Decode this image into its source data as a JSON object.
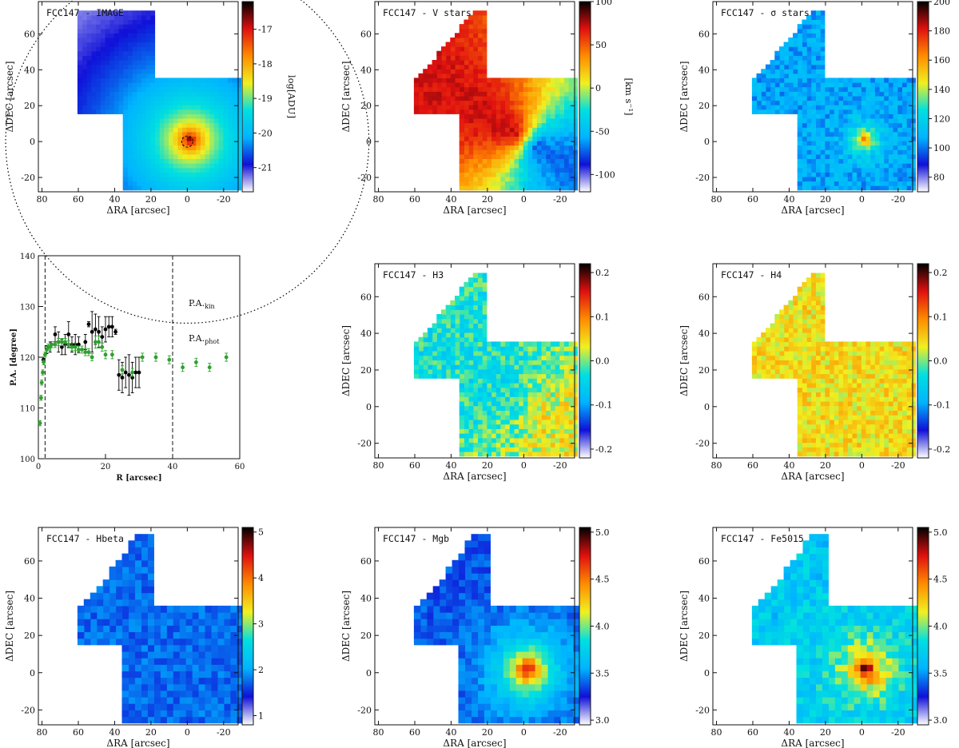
{
  "colors": {
    "axis": "#111111",
    "kin_series": "#000000",
    "phot_series": "#2ea02e",
    "colormap": [
      "#ffffff",
      "#1010d8",
      "#00b4ff",
      "#00e0e0",
      "#f0f020",
      "#ff8c00",
      "#e01010",
      "#000000"
    ]
  },
  "chart_data": [
    {
      "type": "heatmap",
      "title": "FCC147 - IMAGE",
      "xlabel": "ΔRA [arcsec]",
      "ylabel": "ΔDEC [arcsec]",
      "xlim": [
        82,
        -28
      ],
      "ylim": [
        -28,
        78
      ],
      "xticks": [
        "80",
        "60",
        "40",
        "20",
        "0",
        "-20"
      ],
      "yticks": [
        "-20",
        "0",
        "20",
        "40",
        "60"
      ],
      "colorbar": {
        "label": "log[ADU]",
        "range": [
          -21.7,
          -16.2
        ],
        "ticks": [
          "-17",
          "-18",
          "-19",
          "-20",
          "-21"
        ]
      },
      "annotations": [
        "dotted circle",
        "dashed central circle"
      ]
    },
    {
      "type": "heatmap",
      "title": "FCC147 - V stars",
      "xlabel": "ΔRA [arcsec]",
      "ylabel": "ΔDEC [arcsec]",
      "xlim": [
        82,
        -28
      ],
      "ylim": [
        -28,
        78
      ],
      "xticks": [
        "80",
        "60",
        "40",
        "20",
        "0",
        "-20"
      ],
      "yticks": [
        "-20",
        "0",
        "20",
        "40",
        "60"
      ],
      "colorbar": {
        "label": "[km s⁻¹]",
        "range": [
          -120,
          100
        ],
        "ticks": [
          "100",
          "50",
          "0",
          "-50",
          "-100"
        ]
      }
    },
    {
      "type": "heatmap",
      "title": "FCC147 - σ stars",
      "xlabel": "ΔRA [arcsec]",
      "ylabel": "ΔDEC [arcsec]",
      "xlim": [
        82,
        -28
      ],
      "ylim": [
        -28,
        78
      ],
      "xticks": [
        "80",
        "60",
        "40",
        "20",
        "0",
        "-20"
      ],
      "yticks": [
        "-20",
        "0",
        "20",
        "40",
        "60"
      ],
      "colorbar": {
        "label": "[km s⁻¹]",
        "range": [
          70,
          200
        ],
        "ticks": [
          "200",
          "180",
          "160",
          "140",
          "120",
          "100",
          "80"
        ]
      }
    },
    {
      "type": "scatter",
      "title": "",
      "xlabel": "R [arcsec]",
      "ylabel": "P.A. [degree]",
      "xlim": [
        0,
        60
      ],
      "ylim": [
        100,
        140
      ],
      "xticks": [
        "0",
        "20",
        "40",
        "60"
      ],
      "yticks": [
        "100",
        "110",
        "120",
        "130",
        "140"
      ],
      "vlines": [
        2,
        40
      ],
      "legend": [
        "P.A._kin",
        "P.A._phot"
      ],
      "legend_position": "top-right",
      "series": [
        {
          "name": "P.A._kin",
          "x": [
            1.5,
            2.5,
            3.5,
            5,
            6,
            7,
            8,
            9,
            10,
            11,
            12,
            14,
            15,
            16,
            17,
            18,
            19,
            20,
            21,
            22,
            23,
            24,
            25,
            26,
            27,
            28,
            29,
            30
          ],
          "y": [
            119.5,
            121.5,
            122,
            124.5,
            123,
            122,
            122.5,
            124.5,
            122.5,
            122.5,
            122.5,
            123,
            126.5,
            125,
            125.5,
            125,
            124,
            125.5,
            126,
            126,
            125,
            116.5,
            116,
            117,
            116.5,
            116,
            117,
            117
          ],
          "err": [
            0.5,
            0.8,
            1,
            1.5,
            2,
            1.5,
            2,
            2.5,
            1.5,
            2,
            1.5,
            1.5,
            0.5,
            4,
            3,
            3,
            2,
            2.5,
            2,
            2,
            0.5,
            3,
            3,
            3,
            4,
            3,
            3,
            3
          ]
        },
        {
          "name": "P.A._phot",
          "x": [
            0.5,
            0.8,
            1,
            1.3,
            1.6,
            2,
            2.5,
            3,
            3.5,
            4,
            5,
            6,
            7,
            8,
            9,
            10,
            11,
            12,
            13,
            14,
            15,
            16,
            17,
            18,
            19,
            20,
            22,
            25,
            28,
            31,
            35,
            39,
            43,
            47,
            51,
            56
          ],
          "y": [
            107,
            112,
            115,
            117,
            119,
            120.5,
            121.5,
            122,
            122,
            122.5,
            122.5,
            123,
            123,
            123,
            122.5,
            122,
            122,
            121.5,
            121.5,
            121,
            121,
            120,
            123,
            123,
            122,
            120.5,
            120.5,
            117.5,
            117,
            120,
            120,
            119.5,
            118,
            119,
            118,
            120
          ],
          "err": [
            0.5,
            0.5,
            0.5,
            0.5,
            0.5,
            0.5,
            0.6,
            0.6,
            0.6,
            0.6,
            0.6,
            0.7,
            0.7,
            0.7,
            0.7,
            0.7,
            0.7,
            0.7,
            0.7,
            0.7,
            0.7,
            0.7,
            1.2,
            1.2,
            0.8,
            0.8,
            0.8,
            0.8,
            0.8,
            0.8,
            0.8,
            0.8,
            0.8,
            0.8,
            0.8,
            0.8
          ]
        }
      ]
    },
    {
      "type": "heatmap",
      "title": "FCC147 - H3",
      "xlabel": "ΔRA [arcsec]",
      "ylabel": "ΔDEC [arcsec]",
      "xlim": [
        82,
        -28
      ],
      "ylim": [
        -28,
        78
      ],
      "xticks": [
        "80",
        "60",
        "40",
        "20",
        "0",
        "-20"
      ],
      "yticks": [
        "-20",
        "0",
        "20",
        "40",
        "60"
      ],
      "colorbar": {
        "label": "",
        "range": [
          -0.22,
          0.22
        ],
        "ticks": [
          "0.2",
          "0.1",
          "0.0",
          "-0.1",
          "-0.2"
        ]
      }
    },
    {
      "type": "heatmap",
      "title": "FCC147 - H4",
      "xlabel": "ΔRA [arcsec]",
      "ylabel": "ΔDEC [arcsec]",
      "xlim": [
        82,
        -28
      ],
      "ylim": [
        -28,
        78
      ],
      "xticks": [
        "80",
        "60",
        "40",
        "20",
        "0",
        "-20"
      ],
      "yticks": [
        "-20",
        "0",
        "20",
        "40",
        "60"
      ],
      "colorbar": {
        "label": "",
        "range": [
          -0.22,
          0.22
        ],
        "ticks": [
          "0.2",
          "0.1",
          "0.0",
          "-0.1",
          "-0.2"
        ]
      }
    },
    {
      "type": "heatmap",
      "title": "FCC147 - Hbeta",
      "xlabel": "ΔRA [arcsec]",
      "ylabel": "ΔDEC [arcsec]",
      "xlim": [
        82,
        -28
      ],
      "ylim": [
        -28,
        78
      ],
      "xticks": [
        "80",
        "60",
        "40",
        "20",
        "0",
        "-20"
      ],
      "yticks": [
        "-20",
        "0",
        "20",
        "40",
        "60"
      ],
      "colorbar": {
        "label": "",
        "range": [
          0.8,
          5.1
        ],
        "ticks": [
          "5",
          "4",
          "3",
          "2",
          "1"
        ]
      }
    },
    {
      "type": "heatmap",
      "title": "FCC147 - Mgb",
      "xlabel": "ΔRA [arcsec]",
      "ylabel": "ΔDEC [arcsec]",
      "xlim": [
        82,
        -28
      ],
      "ylim": [
        -28,
        78
      ],
      "xticks": [
        "80",
        "60",
        "40",
        "20",
        "0",
        "-20"
      ],
      "yticks": [
        "-20",
        "0",
        "20",
        "40",
        "60"
      ],
      "colorbar": {
        "label": "",
        "range": [
          2.95,
          5.05
        ],
        "ticks": [
          "5.0",
          "4.5",
          "4.0",
          "3.5",
          "3.0"
        ]
      }
    },
    {
      "type": "heatmap",
      "title": "FCC147 - Fe5015",
      "xlabel": "ΔRA [arcsec]",
      "ylabel": "ΔDEC [arcsec]",
      "xlim": [
        82,
        -28
      ],
      "ylim": [
        -28,
        78
      ],
      "xticks": [
        "80",
        "60",
        "40",
        "20",
        "0",
        "-20"
      ],
      "yticks": [
        "-20",
        "0",
        "20",
        "40",
        "60"
      ],
      "colorbar": {
        "label": "",
        "range": [
          2.95,
          5.05
        ],
        "ticks": [
          "5.0",
          "4.5",
          "4.0",
          "3.5",
          "3.0"
        ]
      }
    }
  ]
}
